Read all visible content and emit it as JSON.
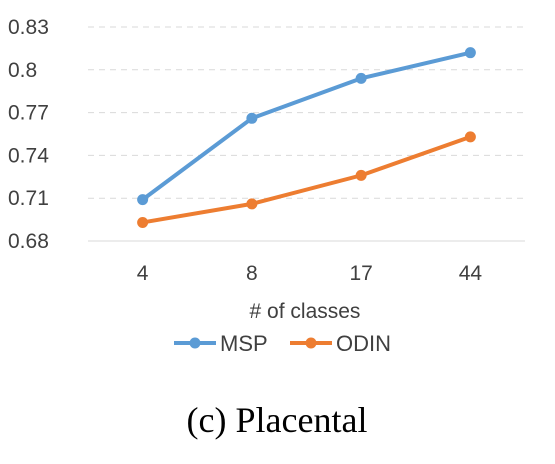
{
  "chart_data": {
    "type": "line",
    "categories": [
      "4",
      "8",
      "17",
      "44"
    ],
    "series": [
      {
        "name": "MSP",
        "values": [
          0.709,
          0.766,
          0.794,
          0.812
        ],
        "color": "#5B9BD5"
      },
      {
        "name": "ODIN",
        "values": [
          0.693,
          0.706,
          0.726,
          0.753
        ],
        "color": "#ED7D31"
      }
    ],
    "xlabel": "# of classes",
    "ylabel": "",
    "ylim": [
      0.68,
      0.83
    ],
    "yticks": [
      "0.68",
      "0.71",
      "0.74",
      "0.77",
      "0.8",
      "0.83"
    ],
    "grid": "horizontal-dashed",
    "legend": "bottom"
  },
  "caption": "(c) Placental"
}
